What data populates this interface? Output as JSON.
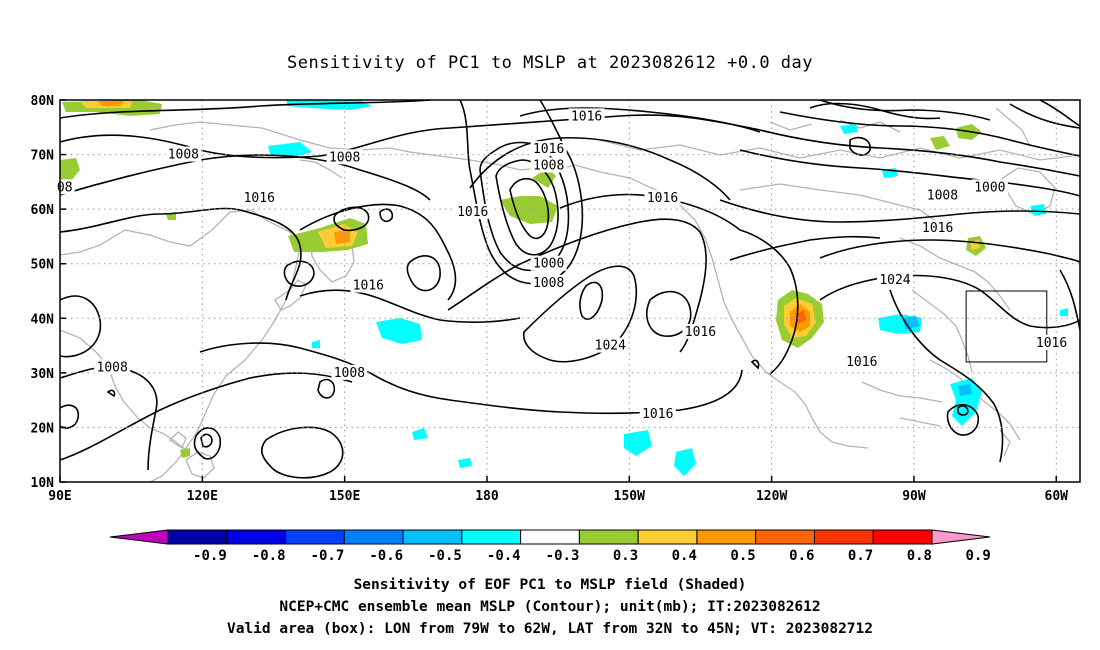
{
  "title": "Sensitivity of PC1 to MSLP at 2023082612 +0.0 day",
  "map": {
    "projection": "cylindrical",
    "lon_range_east": [
      90,
      305
    ],
    "lat_range": [
      10,
      80
    ],
    "lon_ticks": [
      {
        "value": 90,
        "label": "90E"
      },
      {
        "value": 120,
        "label": "120E"
      },
      {
        "value": 150,
        "label": "150E"
      },
      {
        "value": 180,
        "label": "180"
      },
      {
        "value": 210,
        "label": "150W"
      },
      {
        "value": 240,
        "label": "120W"
      },
      {
        "value": 270,
        "label": "90W"
      },
      {
        "value": 300,
        "label": "60W"
      }
    ],
    "lat_ticks": [
      {
        "value": 10,
        "label": "10N"
      },
      {
        "value": 20,
        "label": "20N"
      },
      {
        "value": 30,
        "label": "30N"
      },
      {
        "value": 40,
        "label": "40N"
      },
      {
        "value": 50,
        "label": "50N"
      },
      {
        "value": 60,
        "label": "60N"
      },
      {
        "value": 70,
        "label": "70N"
      },
      {
        "value": 80,
        "label": "80N"
      }
    ],
    "grid": "dotted",
    "valid_box": {
      "lon_w": 79,
      "lon_e": 62,
      "lat_s": 32,
      "lat_n": 45
    }
  },
  "contour_labels": [
    {
      "text": "1016",
      "lon": 201,
      "lat": 77
    },
    {
      "text": "1016",
      "lon": 193,
      "lat": 71
    },
    {
      "text": "1008",
      "lon": 193,
      "lat": 68
    },
    {
      "text": "1008",
      "lon": 116,
      "lat": 70
    },
    {
      "text": "1008",
      "lon": 150,
      "lat": 69.5
    },
    {
      "text": "08",
      "lon": 91,
      "lat": 64
    },
    {
      "text": "1016",
      "lon": 132,
      "lat": 62
    },
    {
      "text": "1016",
      "lon": 177,
      "lat": 59.5
    },
    {
      "text": "1016",
      "lon": 217,
      "lat": 62
    },
    {
      "text": "1000",
      "lon": 193,
      "lat": 50
    },
    {
      "text": "1008",
      "lon": 193,
      "lat": 46.5
    },
    {
      "text": "1016",
      "lon": 155,
      "lat": 46
    },
    {
      "text": "1024",
      "lon": 206,
      "lat": 35
    },
    {
      "text": "1016",
      "lon": 225,
      "lat": 37.5
    },
    {
      "text": "1008",
      "lon": 101,
      "lat": 31
    },
    {
      "text": "1008",
      "lon": 151,
      "lat": 30
    },
    {
      "text": "1016",
      "lon": 216,
      "lat": 22.5
    },
    {
      "text": "1024",
      "lon": 266,
      "lat": 47
    },
    {
      "text": "1016",
      "lon": 275,
      "lat": 56.5
    },
    {
      "text": "1008",
      "lon": 276,
      "lat": 62.5
    },
    {
      "text": "1000",
      "lon": 286,
      "lat": 64
    },
    {
      "text": "1016",
      "lon": 259,
      "lat": 32
    },
    {
      "text": "1016",
      "lon": 299,
      "lat": 35.5
    }
  ],
  "colorbar": {
    "labels": [
      "-0.9",
      "-0.8",
      "-0.7",
      "-0.6",
      "-0.5",
      "-0.4",
      "-0.3",
      "0.3",
      "0.4",
      "0.5",
      "0.6",
      "0.7",
      "0.8",
      "0.9"
    ],
    "colors": [
      "#c000c0",
      "#0000a8",
      "#0000e6",
      "#0040ff",
      "#0080ff",
      "#00c0ff",
      "#00ffff",
      "#ffffff",
      "#99cc33",
      "#ffcc33",
      "#ff9900",
      "#ff6600",
      "#ff3300",
      "#ff0000",
      "#ff99cc"
    ]
  },
  "captions": {
    "line1": "Sensitivity of EOF PC1 to MSLP field (Shaded)",
    "line2": "NCEP+CMC ensemble mean MSLP (Contour); unit(mb); IT:2023082612",
    "line3": "Valid area (box): LON from 79W to 62W, LAT from 32N to 45N; VT: 2023082712"
  }
}
